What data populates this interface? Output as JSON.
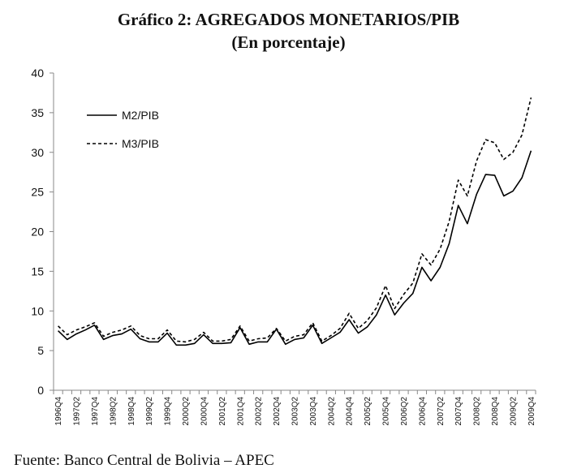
{
  "chart_data": {
    "type": "line",
    "title": "Gráfico 2: AGREGADOS MONETARIOS/PIB",
    "subtitle": "(En porcentaje)",
    "source": "Fuente: Banco Central de Bolivia – APEC",
    "xlabel": "",
    "ylabel": "",
    "ylim": [
      0,
      40
    ],
    "yticks": [
      0,
      5,
      10,
      15,
      20,
      25,
      30,
      35,
      40
    ],
    "grid": false,
    "legend_position": "top-left",
    "x": [
      "1996 Q4",
      "1997 Q1",
      "1997 Q2",
      "1997 Q3",
      "1997 Q4",
      "1998 Q1",
      "1998 Q2",
      "1998 Q3",
      "1998 Q4",
      "1999 Q1",
      "1999 Q2",
      "1999 Q3",
      "1999 Q4",
      "2000 Q1",
      "2000 Q2",
      "2000 Q3",
      "2000 Q4",
      "2001 Q1",
      "2001 Q2",
      "2001 Q3",
      "2001 Q4",
      "2002 Q1",
      "2002 Q2",
      "2002 Q3",
      "2002 Q4",
      "2003 Q1",
      "2003 Q2",
      "2003 Q3",
      "2003 Q4",
      "2004 Q1",
      "2004 Q2",
      "2004 Q3",
      "2004 Q4",
      "2005 Q1",
      "2005 Q2",
      "2005 Q3",
      "2005 Q4",
      "2006 Q1",
      "2006 Q2",
      "2006 Q3",
      "2006 Q4",
      "2007 Q1",
      "2007 Q2",
      "2007 Q3",
      "2007 Q4",
      "2008 Q1",
      "2008 Q2",
      "2008 Q3",
      "2008 Q4",
      "2009 Q1",
      "2009 Q2",
      "2009 Q3",
      "2009 Q4"
    ],
    "tick_labels": [
      "1996 Q4",
      "1997 Q2",
      "1997 Q4",
      "1998 Q2",
      "1998 Q4",
      "1999 Q2",
      "1999 Q4",
      "2000 Q2",
      "2000 Q4",
      "2001 Q2",
      "2001 Q4",
      "2002 Q2",
      "2002 Q4",
      "2003 Q2",
      "2003 Q4",
      "2004 Q2",
      "2004 Q4",
      "2005 Q2",
      "2005 Q4",
      "2006 Q2",
      "2006 Q4",
      "2007 Q2",
      "2007 Q4",
      "2008 Q2",
      "2008 Q4",
      "2009 Q2",
      "2009 Q4"
    ],
    "series": [
      {
        "name": "M2/PIB",
        "style": "solid",
        "values": [
          7.5,
          6.4,
          7.1,
          7.6,
          8.2,
          6.4,
          6.9,
          7.1,
          7.7,
          6.5,
          6.1,
          6.1,
          7.2,
          5.7,
          5.7,
          5.9,
          7.0,
          5.9,
          5.9,
          6.0,
          7.9,
          5.8,
          6.1,
          6.1,
          7.7,
          5.8,
          6.4,
          6.6,
          8.2,
          5.9,
          6.6,
          7.3,
          8.9,
          7.2,
          8.0,
          9.5,
          12.0,
          9.5,
          11.0,
          12.2,
          15.5,
          13.8,
          15.5,
          18.5,
          23.3,
          21.0,
          24.7,
          27.2,
          27.1,
          24.5,
          25.1,
          26.8,
          30.2
        ]
      },
      {
        "name": "M3/PIB",
        "style": "dashed",
        "values": [
          8.1,
          7.0,
          7.6,
          8.0,
          8.5,
          6.8,
          7.3,
          7.6,
          8.1,
          6.9,
          6.5,
          6.5,
          7.6,
          6.2,
          6.1,
          6.4,
          7.3,
          6.2,
          6.2,
          6.4,
          8.1,
          6.2,
          6.5,
          6.6,
          7.8,
          6.2,
          6.8,
          7.0,
          8.5,
          6.2,
          6.9,
          7.8,
          9.7,
          7.8,
          8.8,
          10.4,
          13.2,
          10.3,
          12.1,
          13.5,
          17.2,
          15.8,
          17.8,
          21.3,
          26.5,
          24.5,
          28.9,
          31.6,
          31.2,
          29.1,
          30.0,
          32.2,
          36.9
        ]
      }
    ]
  }
}
